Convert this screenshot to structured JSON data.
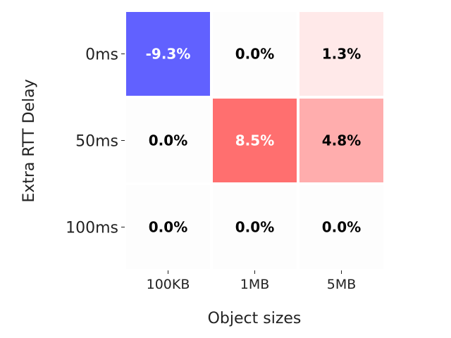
{
  "chart_data": {
    "type": "heatmap",
    "title": "",
    "xlabel": "Object sizes",
    "ylabel": "Extra RTT Delay",
    "x_categories": [
      "100KB",
      "1MB",
      "5MB"
    ],
    "y_categories": [
      "0ms",
      "50ms",
      "100ms"
    ],
    "values": [
      [
        -9.3,
        0.0,
        1.3
      ],
      [
        0.0,
        8.5,
        4.8
      ],
      [
        0.0,
        0.0,
        0.0
      ]
    ],
    "cell_labels": [
      [
        "-9.3%",
        "0.0%",
        "1.3%"
      ],
      [
        "0.0%",
        "8.5%",
        "4.8%"
      ],
      [
        "0.0%",
        "0.0%",
        "0.0%"
      ]
    ],
    "colormap": "bwr",
    "color_range": [
      -15,
      15
    ],
    "colorbar": false,
    "grid": false
  }
}
